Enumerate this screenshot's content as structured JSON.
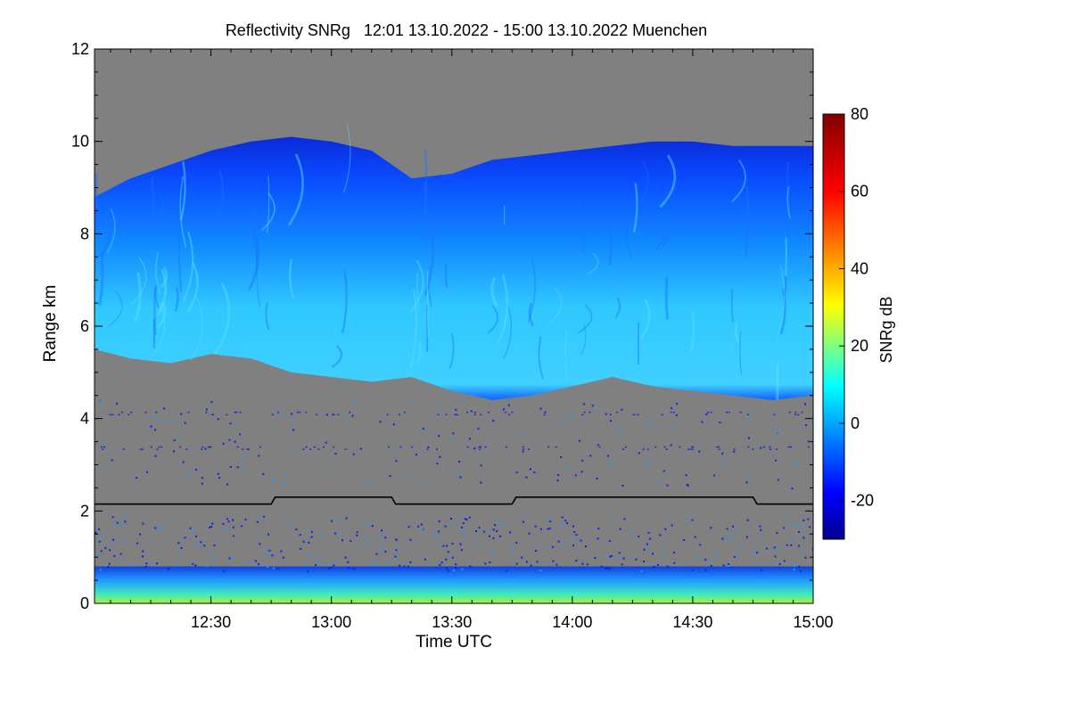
{
  "chart_data": {
    "type": "heatmap",
    "title": "Reflectivity SNRg   12:01 13.10.2022 - 15:00 13.10.2022 Muenchen",
    "xlabel": "Time UTC",
    "ylabel": "Range km",
    "xlim": [
      "12:01",
      "15:00"
    ],
    "ylim": [
      0,
      12
    ],
    "xticks": [
      "12:30",
      "13:00",
      "13:30",
      "14:00",
      "14:30",
      "15:00"
    ],
    "yticks": [
      "0",
      "2",
      "4",
      "6",
      "8",
      "10",
      "12"
    ],
    "colorbar": {
      "label": "SNRg dB",
      "range": [
        -30,
        80
      ],
      "ticks": [
        "-20",
        "0",
        "20",
        "40",
        "60",
        "80"
      ]
    },
    "background_color": "#808080",
    "cloud_layer": {
      "description_values": "approx. cloud base and top altitude (km) vs time",
      "time": [
        "12:01",
        "12:10",
        "12:20",
        "12:30",
        "12:40",
        "12:50",
        "13:00",
        "13:10",
        "13:20",
        "13:30",
        "13:40",
        "13:50",
        "14:00",
        "14:10",
        "14:20",
        "14:30",
        "14:40",
        "14:50",
        "15:00"
      ],
      "base_km": [
        5.5,
        5.3,
        5.2,
        5.4,
        5.3,
        5.0,
        4.9,
        4.8,
        4.9,
        4.6,
        4.4,
        4.5,
        4.7,
        4.9,
        4.7,
        4.6,
        4.5,
        4.4,
        4.5
      ],
      "top_km": [
        8.8,
        9.2,
        9.5,
        9.8,
        10.0,
        10.1,
        10.0,
        9.8,
        9.2,
        9.3,
        9.6,
        9.7,
        9.8,
        9.9,
        10.0,
        10.0,
        9.9,
        9.9,
        9.9
      ]
    },
    "reference_line": {
      "color": "#000000",
      "time": [
        "12:01",
        "12:45",
        "12:46",
        "13:15",
        "13:16",
        "13:45",
        "13:46",
        "14:45",
        "14:46",
        "15:00"
      ],
      "range_km": [
        2.15,
        2.15,
        2.3,
        2.3,
        2.15,
        2.15,
        2.3,
        2.3,
        2.15,
        2.15
      ]
    }
  }
}
